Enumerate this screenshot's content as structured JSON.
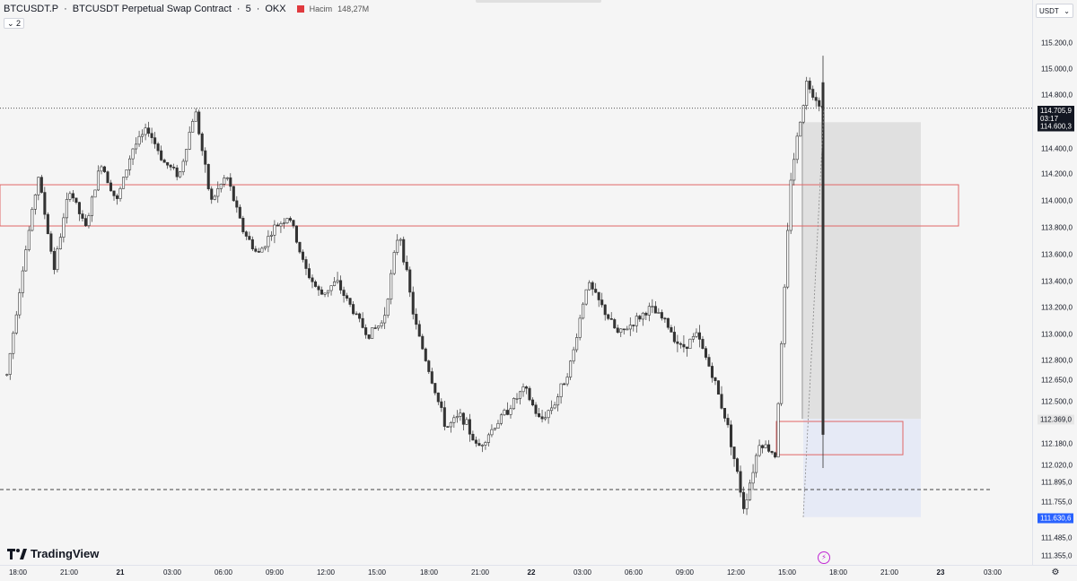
{
  "header": {
    "symbol": "BTCUSDT.P",
    "description": "BTCUSDT Perpetual Swap Contract",
    "timeframe": "5",
    "exchange": "OKX",
    "separator": "·",
    "volume_label": "Hacim",
    "volume_value": "148,27M",
    "collapse_label": "⌄ 2"
  },
  "price_axis": {
    "currency": "USDT",
    "ticks": [
      "115.200,0",
      "115.000,0",
      "114.800,0",
      "114.400,0",
      "114.200,0",
      "114.000,0",
      "113.800,0",
      "113.600,0",
      "113.400,0",
      "113.200,0",
      "113.000,0",
      "112.800,0",
      "112.650,0",
      "112.500,0",
      "112.180,0",
      "112.020,0",
      "111.895,0",
      "111.755,0",
      "111.485,0",
      "111.355,0"
    ],
    "current_price": "114.705,9",
    "countdown": "03:17",
    "target_price": "114.600,3",
    "entry_price": "112.369,0",
    "stop_price": "111.630,6"
  },
  "time_axis": {
    "ticks": [
      {
        "label": "18:00",
        "bold": false
      },
      {
        "label": "21:00",
        "bold": false
      },
      {
        "label": "21",
        "bold": true
      },
      {
        "label": "03:00",
        "bold": false
      },
      {
        "label": "06:00",
        "bold": false
      },
      {
        "label": "09:00",
        "bold": false
      },
      {
        "label": "12:00",
        "bold": false
      },
      {
        "label": "15:00",
        "bold": false
      },
      {
        "label": "18:00",
        "bold": false
      },
      {
        "label": "21:00",
        "bold": false
      },
      {
        "label": "22",
        "bold": true
      },
      {
        "label": "03:00",
        "bold": false
      },
      {
        "label": "06:00",
        "bold": false
      },
      {
        "label": "09:00",
        "bold": false
      },
      {
        "label": "12:00",
        "bold": false
      },
      {
        "label": "15:00",
        "bold": false
      },
      {
        "label": "18:00",
        "bold": false
      },
      {
        "label": "21:00",
        "bold": false
      },
      {
        "label": "23",
        "bold": true
      },
      {
        "label": "03:00",
        "bold": false
      }
    ]
  },
  "branding": {
    "logo_text": "TradingView"
  },
  "icons": {
    "settings": "gear-icon",
    "lightning": "lightning-icon",
    "logo": "tradingview-logo-icon",
    "dropdown": "chevron-down-icon"
  },
  "colors": {
    "background": "#f5f5f5",
    "candle": "#333333",
    "zone_red": "#e06666",
    "target_zone": "#dcdcdc",
    "stop_zone": "#e6eaf6",
    "price_badge_dark": "#131722",
    "price_badge_blue": "#2962ff",
    "accent_magenta": "#c026d3"
  },
  "chart_data": {
    "type": "candlestick",
    "y_scale": "price",
    "key_levels": {
      "current": 114705.9,
      "target": 114600.3,
      "entry": 112369.0,
      "stop": 111630.6
    },
    "resistance_zone": [
      113820,
      114130
    ],
    "support_zone": [
      112100,
      112350
    ],
    "close_path": [
      [
        "18:00",
        112700
      ],
      [
        "18:30",
        113500
      ],
      [
        "19:00",
        114200
      ],
      [
        "20:00",
        113500
      ],
      [
        "21:00",
        114100
      ],
      [
        "22:00",
        113800
      ],
      [
        "23:00",
        114300
      ],
      [
        "00:00",
        114000
      ],
      [
        "01:00",
        114400
      ],
      [
        "02:00",
        114550
      ],
      [
        "03:00",
        114300
      ],
      [
        "04:00",
        114200
      ],
      [
        "05:00",
        114700
      ],
      [
        "06:00",
        114000
      ],
      [
        "07:00",
        114200
      ],
      [
        "08:00",
        113800
      ],
      [
        "09:00",
        113600
      ],
      [
        "10:00",
        113800
      ],
      [
        "11:00",
        113900
      ],
      [
        "12:00",
        113500
      ],
      [
        "13:00",
        113300
      ],
      [
        "14:00",
        113400
      ],
      [
        "15:00",
        113200
      ],
      [
        "16:00",
        113000
      ],
      [
        "17:00",
        113100
      ],
      [
        "18:00",
        113800
      ],
      [
        "19:00",
        113100
      ],
      [
        "20:00",
        112700
      ],
      [
        "21:00",
        112300
      ],
      [
        "22:00",
        112400
      ],
      [
        "23:00",
        112150
      ],
      [
        "00:00",
        112300
      ],
      [
        "01:00",
        112450
      ],
      [
        "02:00",
        112600
      ],
      [
        "03:00",
        112350
      ],
      [
        "04:00",
        112500
      ],
      [
        "05:00",
        112800
      ],
      [
        "06:00",
        113400
      ],
      [
        "07:00",
        113200
      ],
      [
        "08:00",
        113000
      ],
      [
        "09:00",
        113100
      ],
      [
        "10:00",
        113200
      ],
      [
        "11:00",
        113100
      ],
      [
        "12:00",
        112900
      ],
      [
        "13:00",
        113000
      ],
      [
        "14:00",
        112700
      ],
      [
        "15:00",
        112300
      ],
      [
        "15:30",
        111700
      ],
      [
        "16:00",
        112200
      ],
      [
        "16:30",
        112100
      ],
      [
        "17:00",
        114200
      ],
      [
        "17:10",
        114900
      ],
      [
        "17:17",
        114705.9
      ]
    ]
  }
}
